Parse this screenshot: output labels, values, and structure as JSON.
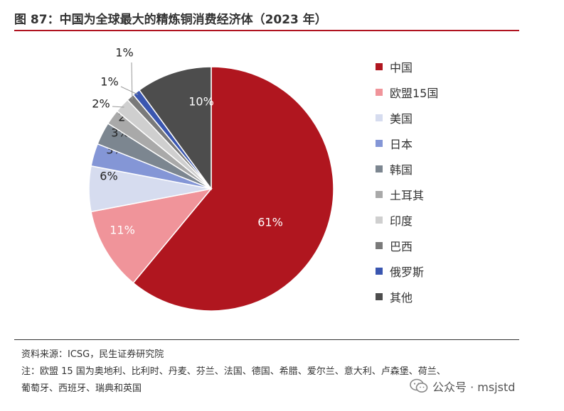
{
  "title": "图 87：中国为全球最大的精炼铜消费经济体（2023 年）",
  "chart_data": {
    "type": "pie",
    "title": "",
    "start_angle_deg": 0,
    "direction": "clockwise",
    "legend_position": "right",
    "slices": [
      {
        "name": "中国",
        "value": 61,
        "label": "61%",
        "color": "#b0161f"
      },
      {
        "name": "欧盟15国",
        "value": 11,
        "label": "11%",
        "color": "#f0949a"
      },
      {
        "name": "美国",
        "value": 6,
        "label": "6%",
        "color": "#d6dcef"
      },
      {
        "name": "日本",
        "value": 3,
        "label": "3%",
        "color": "#8496d6"
      },
      {
        "name": "韩国",
        "value": 3,
        "label": "3%",
        "color": "#7c8690"
      },
      {
        "name": "土耳其",
        "value": 2,
        "label": "2%",
        "color": "#a9a9a9"
      },
      {
        "name": "印度",
        "value": 2,
        "label": "2%",
        "color": "#cfcfcf"
      },
      {
        "name": "巴西",
        "value": 1,
        "label": "1%",
        "color": "#7a7a7a"
      },
      {
        "name": "俄罗斯",
        "value": 1,
        "label": "1%",
        "color": "#3a56b0"
      },
      {
        "name": "其他",
        "value": 10,
        "label": "10%",
        "color": "#4d4d4d"
      }
    ]
  },
  "footer": {
    "source": "资料来源：ICSG，民生证券研究院",
    "note_line1": "注：欧盟 15 国为奥地利、比利时、丹麦、芬兰、法国、德国、希腊、爱尔兰、意大利、卢森堡、荷兰、",
    "note_line2": "葡萄牙、西班牙、瑞典和英国"
  },
  "watermark": {
    "text": "公众号 · msjstd",
    "icon": "wechat-icon"
  }
}
